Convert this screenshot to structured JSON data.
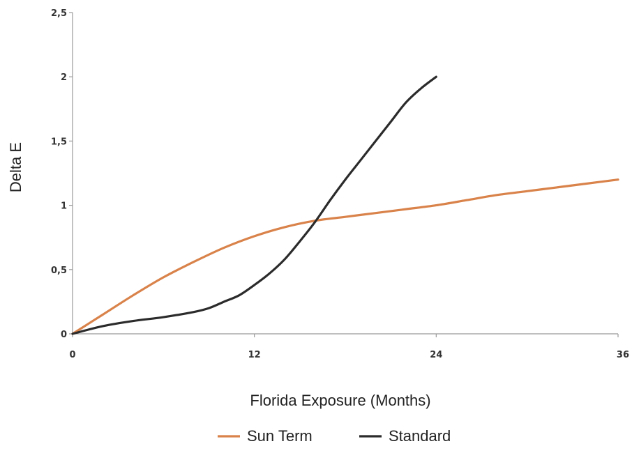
{
  "chart_data": {
    "type": "line",
    "xlabel": "Florida Exposure (Months)",
    "ylabel": "Delta E",
    "xlim": [
      0,
      36
    ],
    "ylim": [
      0,
      2.5
    ],
    "x_ticks": [
      0,
      12,
      24,
      36
    ],
    "x_tick_labels": [
      "0",
      "12",
      "24",
      "36"
    ],
    "y_ticks": [
      0,
      0.5,
      1,
      1.5,
      2,
      2.5
    ],
    "y_tick_labels": [
      "0",
      "0,5",
      "1",
      "1,5",
      "2",
      "2,5"
    ],
    "grid": false,
    "legend_position": "bottom",
    "series": [
      {
        "name": "Sun Term",
        "color": "#d9824a",
        "x": [
          0,
          2,
          4,
          6,
          8,
          10,
          12,
          14,
          16,
          18,
          20,
          22,
          24,
          26,
          28,
          30,
          32,
          34,
          36
        ],
        "y": [
          0,
          0.15,
          0.3,
          0.44,
          0.56,
          0.67,
          0.76,
          0.83,
          0.88,
          0.91,
          0.94,
          0.97,
          1.0,
          1.04,
          1.08,
          1.11,
          1.14,
          1.17,
          1.2
        ]
      },
      {
        "name": "Standard",
        "color": "#2b2b2b",
        "x": [
          0,
          2,
          4,
          6,
          8,
          9,
          10,
          11,
          12,
          13,
          14,
          15,
          16,
          17,
          18,
          19,
          20,
          21,
          22,
          23,
          24
        ],
        "y": [
          0,
          0.06,
          0.1,
          0.13,
          0.17,
          0.2,
          0.25,
          0.3,
          0.38,
          0.47,
          0.58,
          0.72,
          0.87,
          1.04,
          1.2,
          1.35,
          1.5,
          1.65,
          1.8,
          1.91,
          2.0
        ]
      }
    ]
  }
}
